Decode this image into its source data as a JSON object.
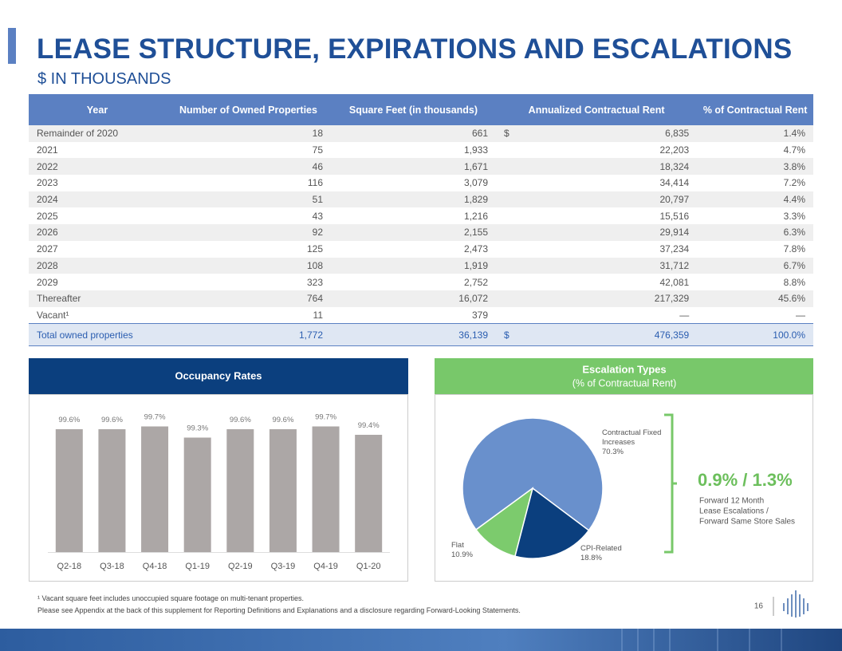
{
  "header": {
    "title": "LEASE STRUCTURE, EXPIRATIONS AND ESCALATIONS",
    "subtitle": "$ IN THOUSANDS"
  },
  "table": {
    "headers": [
      "Year",
      "Number of Owned Properties",
      "Square Feet (in thousands)",
      "Annualized Contractual Rent",
      "% of Contractual Rent"
    ],
    "rows": [
      {
        "year": "Remainder of 2020",
        "properties": "18",
        "square_feet": "661",
        "currency": "$",
        "rent": "6,835",
        "percent": "1.4%"
      },
      {
        "year": "2021",
        "properties": "75",
        "square_feet": "1,933",
        "rent": "22,203",
        "percent": "4.7%"
      },
      {
        "year": "2022",
        "properties": "46",
        "square_feet": "1,671",
        "rent": "18,324",
        "percent": "3.8%"
      },
      {
        "year": "2023",
        "properties": "116",
        "square_feet": "3,079",
        "rent": "34,414",
        "percent": "7.2%"
      },
      {
        "year": "2024",
        "properties": "51",
        "square_feet": "1,829",
        "rent": "20,797",
        "percent": "4.4%"
      },
      {
        "year": "2025",
        "properties": "43",
        "square_feet": "1,216",
        "rent": "15,516",
        "percent": "3.3%"
      },
      {
        "year": "2026",
        "properties": "92",
        "square_feet": "2,155",
        "rent": "29,914",
        "percent": "6.3%"
      },
      {
        "year": "2027",
        "properties": "125",
        "square_feet": "2,473",
        "rent": "37,234",
        "percent": "7.8%"
      },
      {
        "year": "2028",
        "properties": "108",
        "square_feet": "1,919",
        "rent": "31,712",
        "percent": "6.7%"
      },
      {
        "year": "2029",
        "properties": "323",
        "square_feet": "2,752",
        "rent": "42,081",
        "percent": "8.8%"
      },
      {
        "year": "Thereafter",
        "properties": "764",
        "square_feet": "16,072",
        "rent": "217,329",
        "percent": "45.6%"
      },
      {
        "year": "Vacant¹",
        "properties": "11",
        "square_feet": "379",
        "rent": "—",
        "percent": "—"
      }
    ],
    "total": {
      "year": "Total owned properties",
      "properties": "1,772",
      "square_feet": "36,139",
      "currency": "$",
      "rent": "476,359",
      "percent": "100.0%"
    }
  },
  "chart_data": [
    {
      "type": "bar",
      "title": "Occupancy Rates",
      "categories": [
        "Q2-18",
        "Q3-18",
        "Q4-18",
        "Q1-19",
        "Q2-19",
        "Q3-19",
        "Q4-19",
        "Q1-20"
      ],
      "values": [
        99.6,
        99.6,
        99.7,
        99.3,
        99.6,
        99.6,
        99.7,
        99.4
      ],
      "value_labels": [
        "99.6%",
        "99.6%",
        "99.7%",
        "99.3%",
        "99.6%",
        "99.6%",
        "99.7%",
        "99.4%"
      ],
      "color": "#aca7a6",
      "ylim": [
        95.2,
        100
      ]
    },
    {
      "type": "pie",
      "title": "Escalation Types",
      "subtitle": "(% of Contractual Rent)",
      "categories": [
        "Contractual Fixed Increases",
        "CPI-Related",
        "Flat"
      ],
      "values": [
        70.3,
        18.8,
        10.9
      ],
      "value_labels": [
        "70.3%",
        "18.8%",
        "10.9%"
      ],
      "colors": [
        "#6990cc",
        "#0b3f7e",
        "#7ccb6d"
      ]
    }
  ],
  "callout": {
    "value": "0.9% / 1.3%",
    "caption": [
      "Forward 12 Month",
      "Lease Escalations /",
      "Forward Same Store Sales"
    ]
  },
  "footnotes": [
    "¹ Vacant square feet includes unoccupied square footage on multi-tenant properties.",
    "Please see Appendix at the back of this supplement for Reporting Definitions and Explanations and a disclosure regarding Forward-Looking Statements."
  ],
  "page_number": "16"
}
